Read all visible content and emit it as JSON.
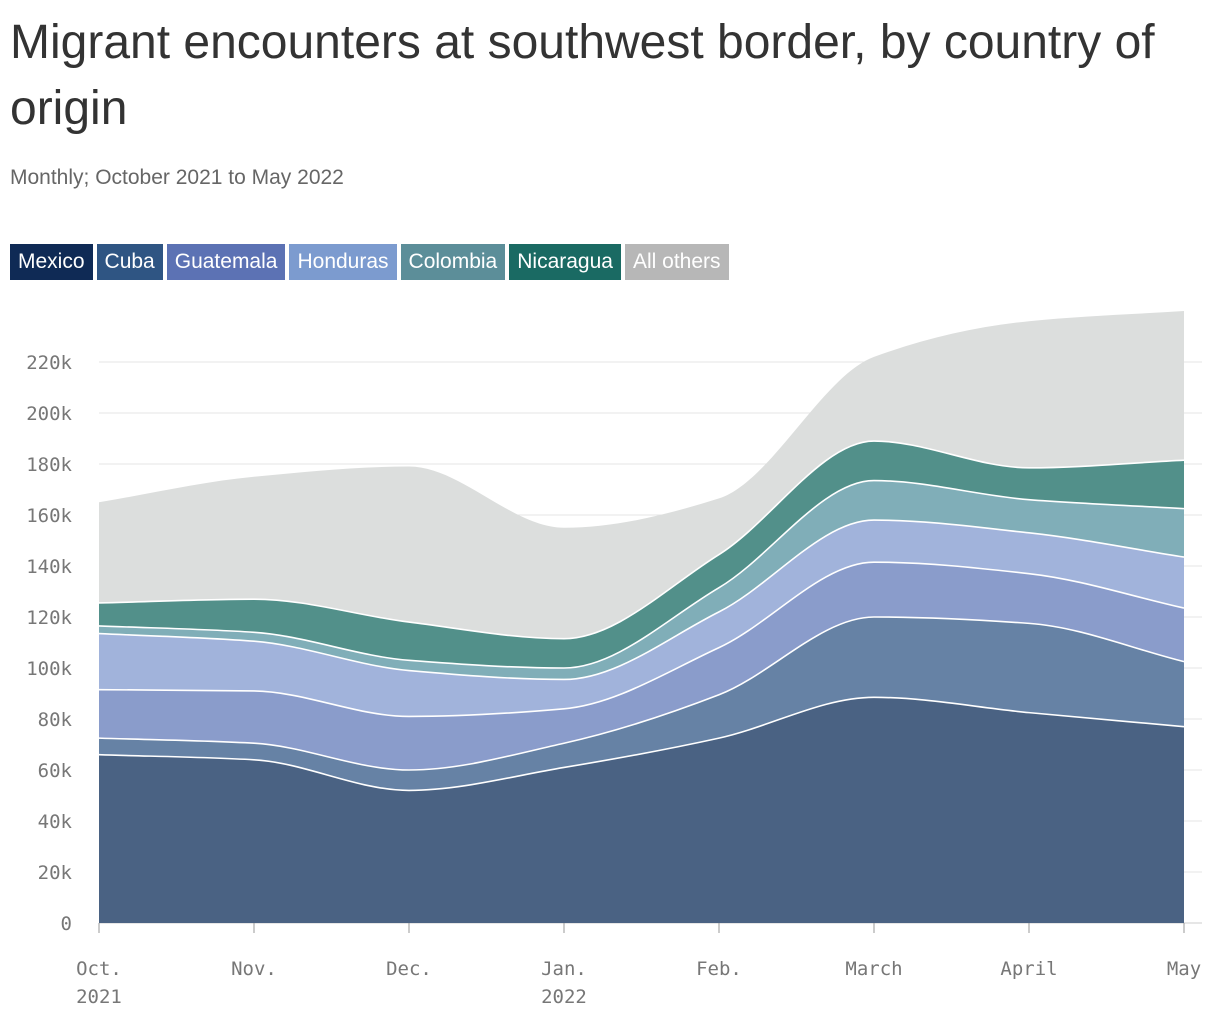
{
  "header": {
    "title": "Migrant encounters at southwest border, by country of origin",
    "subtitle": "Monthly; October 2021 to May 2022"
  },
  "chart_data": {
    "type": "area",
    "stacked": true,
    "x": [
      "Oct. 2021",
      "Nov.",
      "Dec.",
      "Jan. 2022",
      "Feb.",
      "March",
      "April",
      "May"
    ],
    "x_tick_labels": [
      [
        "Oct.",
        "2021"
      ],
      [
        "Nov."
      ],
      [
        "Dec."
      ],
      [
        "Jan.",
        "2022"
      ],
      [
        "Feb."
      ],
      [
        "March"
      ],
      [
        "April"
      ],
      [
        "May"
      ]
    ],
    "ylim": [
      0,
      240000
    ],
    "y_ticks": [
      0,
      20000,
      40000,
      60000,
      80000,
      100000,
      120000,
      140000,
      160000,
      180000,
      200000,
      220000
    ],
    "y_tick_labels": [
      "0",
      "20k",
      "40k",
      "60k",
      "80k",
      "100k",
      "120k",
      "140k",
      "160k",
      "180k",
      "200k",
      "220k"
    ],
    "grid": true,
    "legend_position": "top-left",
    "series": [
      {
        "name": "Mexico",
        "color": "#4a6283",
        "legend_color": "#0f2a55",
        "values": [
          66000,
          64000,
          52000,
          61000,
          72500,
          88500,
          82500,
          77000
        ]
      },
      {
        "name": "Cuba",
        "color": "#6682a5",
        "legend_color": "#2f5583",
        "values": [
          6500,
          6500,
          8000,
          9500,
          17000,
          31500,
          35000,
          25500
        ]
      },
      {
        "name": "Guatemala",
        "color": "#8a9ccb",
        "legend_color": "#5c72b4",
        "values": [
          19000,
          20500,
          21000,
          13500,
          18500,
          21500,
          19500,
          21000
        ]
      },
      {
        "name": "Honduras",
        "color": "#a1b3db",
        "legend_color": "#7c9bcf",
        "values": [
          22000,
          19500,
          18000,
          11500,
          14000,
          16500,
          16000,
          20000
        ]
      },
      {
        "name": "Colombia",
        "color": "#80aeb8",
        "legend_color": "#5c8e99",
        "values": [
          3000,
          3500,
          4000,
          4500,
          9500,
          15500,
          13000,
          19000
        ]
      },
      {
        "name": "Nicaragua",
        "color": "#52908a",
        "legend_color": "#1a6a63",
        "values": [
          9000,
          13000,
          15000,
          11500,
          13000,
          15500,
          12500,
          19000
        ]
      },
      {
        "name": "All others",
        "color": "#dcdedd",
        "legend_color": "#b7b7b7",
        "values": [
          39500,
          48000,
          61000,
          43500,
          22000,
          33000,
          57500,
          58500
        ]
      }
    ]
  }
}
